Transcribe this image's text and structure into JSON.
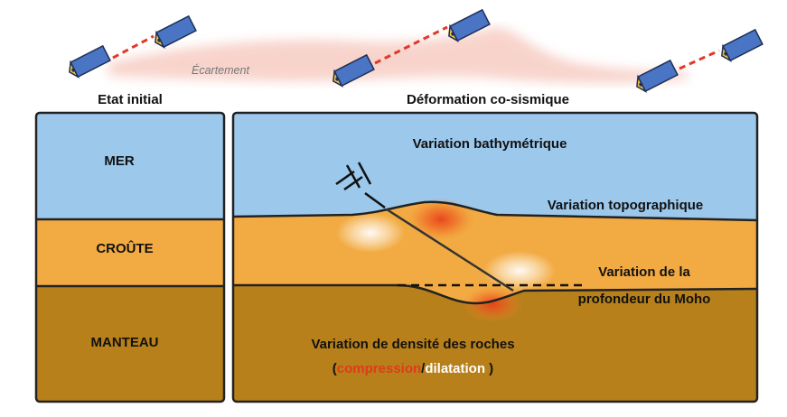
{
  "satellites": {
    "separation_label": "Écartement"
  },
  "panels": {
    "initial": {
      "title": "Etat initial",
      "layers": {
        "sea": "MER",
        "crust": "CROÛTE",
        "mantle": "MANTEAU"
      }
    },
    "deformation": {
      "title": "Déformation co-sismique",
      "labels": {
        "bathymetry": "Variation bathymétrique",
        "topography": "Variation topographique",
        "moho_line1": "Variation de la",
        "moho_line2": "profondeur du Moho",
        "density": "Variation de densité des roches",
        "open_paren": "(",
        "compression": "compression",
        "slash": "/",
        "dilatation": "dilatation",
        "close_paren": " )"
      }
    }
  },
  "colors": {
    "sea": "#9cc8ec",
    "crust": "#f2ab42",
    "mantle": "#b8801a",
    "compression": "#e03a1a",
    "dilatation": "#ffffff",
    "satellite_body": "#4a74c4",
    "satellite_face": "#f3c33a",
    "link": "#e0392b",
    "separation_band": "#f6c9bf"
  }
}
